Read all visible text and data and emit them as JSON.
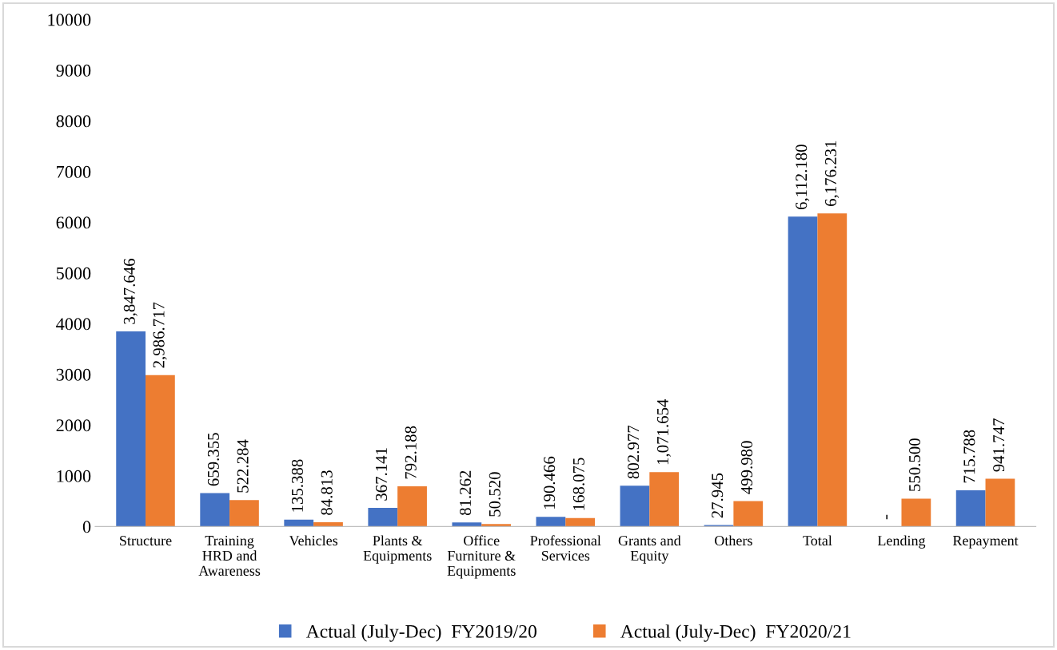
{
  "chart_data": {
    "type": "bar",
    "categories": [
      "Structure",
      "Training\nHRD and\nAwareness",
      "Vehicles",
      "Plants &\nEquipments",
      "Office\nFurniture &\nEquipments",
      "Professional\nServices",
      "Grants and\nEquity",
      "Others",
      "Total",
      "Lending",
      "Repayment"
    ],
    "series": [
      {
        "name": "Actual (July-Dec)  FY2019/20",
        "color": "#4472c4",
        "values": [
          3847.646,
          659.355,
          135.388,
          367.141,
          81.262,
          190.466,
          802.977,
          27.945,
          6112.18,
          0,
          715.788
        ],
        "value_labels": [
          "3,847.646",
          "659.355",
          "135.388",
          "367.141",
          "81.262",
          "190.466",
          "802.977",
          "27.945",
          "6,112.180",
          "-",
          "715.788"
        ]
      },
      {
        "name": "Actual (July-Dec)  FY2020/21",
        "color": "#ed7d31",
        "values": [
          2986.717,
          522.284,
          84.813,
          792.188,
          50.52,
          168.075,
          1071.654,
          499.98,
          6176.231,
          550.5,
          941.747
        ],
        "value_labels": [
          "2,986.717",
          "522.284",
          "84.813",
          "792.188",
          "50.520",
          "168.075",
          "1,071.654",
          "499.980",
          "6,176.231",
          "550.500",
          "941.747"
        ]
      }
    ],
    "ylim": [
      0,
      10000
    ],
    "yticks": [
      0,
      1000,
      2000,
      3000,
      4000,
      5000,
      6000,
      7000,
      8000,
      9000,
      10000
    ],
    "grid": false,
    "legend": "bottom"
  }
}
